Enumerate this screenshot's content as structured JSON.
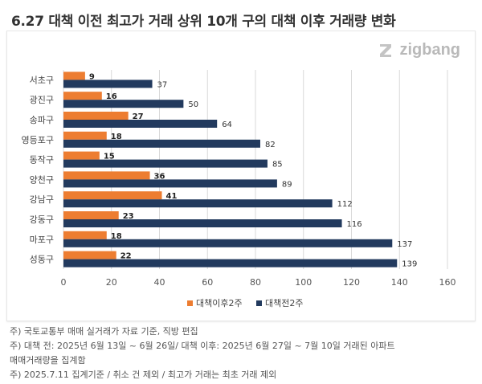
{
  "title": "6.27 대책 이전 최고가 거래 상위 10개 구의 대책 이후 거래량 변화",
  "logo_text": "zigbang",
  "colors": {
    "after": "#ed7d31",
    "before": "#223a5e",
    "grid": "#d9d9d9"
  },
  "chart_data": {
    "type": "bar",
    "orientation": "horizontal",
    "categories": [
      "서초구",
      "광진구",
      "송파구",
      "영등포구",
      "동작구",
      "양천구",
      "강남구",
      "강동구",
      "마포구",
      "성동구"
    ],
    "series": [
      {
        "name": "대책이후2주",
        "values": [
          9,
          16,
          27,
          18,
          15,
          36,
          41,
          23,
          18,
          22
        ]
      },
      {
        "name": "대책전2주",
        "values": [
          37,
          50,
          64,
          82,
          85,
          89,
          112,
          116,
          137,
          139
        ]
      }
    ],
    "xlim": [
      0,
      160
    ],
    "xticks": [
      0,
      20,
      40,
      60,
      80,
      100,
      120,
      140,
      160
    ],
    "grid": true,
    "legend_position": "bottom"
  },
  "notes": [
    "주) 국토교통부 매매 실거래가 자료 기준, 직방 편집",
    "주) 대책 전: 2025년 6월 13일 ~ 6월 26일/ 대책 이후: 2025년 6월 27일 ~ 7월 10일 거래된 아파트",
    "매매거래량을 집계함",
    "주) 2025.7.11 집계기준 / 취소 건 제외  / 최고가 거래는 최초 거래 제외"
  ]
}
